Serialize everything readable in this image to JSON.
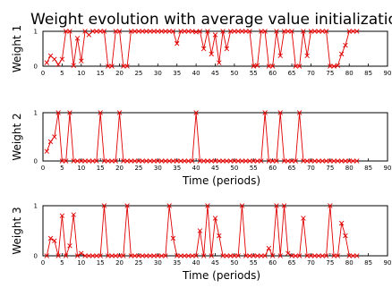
{
  "title": "Weight evolution with average value initialization",
  "chart_data": [
    {
      "type": "line",
      "ylabel": "Weight 1",
      "xlabel": "",
      "xlim": [
        0,
        90
      ],
      "ylim": [
        0,
        1
      ],
      "x_ticks": [
        "0",
        "5",
        "10",
        "15",
        "20",
        "25",
        "30",
        "35",
        "40",
        "45",
        "50",
        "55",
        "60",
        "65",
        "70",
        "75",
        "80",
        "85",
        "90"
      ],
      "y_ticks": [
        "0",
        "1"
      ],
      "color": "#e00000",
      "series": [
        {
          "x": [
            1,
            2,
            3,
            4,
            5,
            6,
            7,
            8,
            9,
            10,
            11,
            12,
            13,
            14,
            15,
            16,
            17,
            18,
            19,
            20,
            21,
            22,
            23,
            24,
            25,
            26,
            27,
            28,
            29,
            30,
            31,
            32,
            33,
            34,
            35,
            36,
            37,
            38,
            39,
            40,
            41,
            42,
            43,
            44,
            45,
            46,
            47,
            48,
            49,
            50,
            51,
            52,
            53,
            54,
            55,
            56,
            57,
            58,
            59,
            60,
            61,
            62,
            63,
            64,
            65,
            66,
            67,
            68,
            69,
            70,
            71,
            72,
            73,
            74,
            75,
            76,
            77,
            78,
            79,
            80,
            81,
            82
          ],
          "values": [
            0.1,
            0.3,
            0.2,
            0.05,
            0.2,
            1,
            1,
            0.02,
            0.8,
            0.15,
            1,
            0.9,
            1,
            1,
            1,
            1,
            0,
            0,
            1,
            1,
            0,
            0,
            1,
            1,
            1,
            1,
            1,
            1,
            1,
            1,
            1,
            1,
            1,
            1,
            0.65,
            1,
            1,
            1,
            1,
            0.98,
            1,
            0.5,
            1,
            0.35,
            0.9,
            0.1,
            1,
            0.5,
            1,
            1,
            1,
            1,
            1,
            1,
            0,
            0.02,
            1,
            1,
            0,
            0,
            1,
            0.3,
            1,
            1,
            1,
            0,
            0,
            1,
            0.3,
            1,
            1,
            1,
            1,
            1,
            0,
            0,
            0.02,
            0.35,
            0.6,
            1,
            1,
            1
          ]
        }
      ]
    },
    {
      "type": "line",
      "ylabel": "Weight 2",
      "xlabel": "Time (periods)",
      "xlim": [
        0,
        90
      ],
      "ylim": [
        0,
        1
      ],
      "x_ticks": [
        "0",
        "5",
        "10",
        "15",
        "20",
        "25",
        "30",
        "35",
        "40",
        "45",
        "50",
        "55",
        "60",
        "65",
        "70",
        "75",
        "80",
        "85",
        "90"
      ],
      "y_ticks": [
        "0",
        "1"
      ],
      "color": "#e00000",
      "series": [
        {
          "x": [
            1,
            2,
            3,
            4,
            5,
            6,
            7,
            8,
            9,
            10,
            11,
            12,
            13,
            14,
            15,
            16,
            17,
            18,
            19,
            20,
            21,
            22,
            23,
            24,
            25,
            26,
            27,
            28,
            29,
            30,
            31,
            32,
            33,
            34,
            35,
            36,
            37,
            38,
            39,
            40,
            41,
            42,
            43,
            44,
            45,
            46,
            47,
            48,
            49,
            50,
            51,
            52,
            53,
            54,
            55,
            56,
            57,
            58,
            59,
            60,
            61,
            62,
            63,
            64,
            65,
            66,
            67,
            68,
            69,
            70,
            71,
            72,
            73,
            74,
            75,
            76,
            77,
            78,
            79,
            80,
            81,
            82
          ],
          "values": [
            0.2,
            0.4,
            0.5,
            1,
            0,
            0,
            1,
            0,
            0,
            0,
            0,
            0,
            0,
            0,
            1,
            0,
            0,
            0,
            0,
            1,
            0,
            0,
            0,
            0,
            0,
            0,
            0,
            0,
            0,
            0,
            0,
            0,
            0,
            0,
            0,
            0,
            0,
            0,
            0,
            1,
            0,
            0,
            0,
            0,
            0,
            0,
            0,
            0,
            0,
            0,
            0,
            0,
            0,
            0,
            0,
            0,
            0,
            1,
            0,
            0,
            0,
            1,
            0,
            0,
            0,
            0,
            1,
            0,
            0,
            0,
            0,
            0,
            0,
            0,
            0,
            0,
            0,
            0,
            0,
            0,
            0,
            0
          ]
        }
      ]
    },
    {
      "type": "line",
      "ylabel": "Weight 3",
      "xlabel": "Time (periods)",
      "xlim": [
        0,
        90
      ],
      "ylim": [
        0,
        1
      ],
      "x_ticks": [
        "0",
        "5",
        "10",
        "15",
        "20",
        "25",
        "30",
        "35",
        "40",
        "45",
        "50",
        "55",
        "60",
        "65",
        "70",
        "75",
        "80",
        "85",
        "90"
      ],
      "y_ticks": [
        "0",
        "1"
      ],
      "color": "#e00000",
      "series": [
        {
          "x": [
            1,
            2,
            3,
            4,
            5,
            6,
            7,
            8,
            9,
            10,
            11,
            12,
            13,
            14,
            15,
            16,
            17,
            18,
            19,
            20,
            21,
            22,
            23,
            24,
            25,
            26,
            27,
            28,
            29,
            30,
            31,
            32,
            33,
            34,
            35,
            36,
            37,
            38,
            39,
            40,
            41,
            42,
            43,
            44,
            45,
            46,
            47,
            48,
            49,
            50,
            51,
            52,
            53,
            54,
            55,
            56,
            57,
            58,
            59,
            60,
            61,
            62,
            63,
            64,
            65,
            66,
            67,
            68,
            69,
            70,
            71,
            72,
            73,
            74,
            75,
            76,
            77,
            78,
            79,
            80,
            81,
            82
          ],
          "values": [
            0,
            0.35,
            0.3,
            0,
            0.8,
            0,
            0.2,
            0.82,
            0,
            0.05,
            0,
            0,
            0,
            0,
            0,
            1,
            0,
            0,
            0,
            0,
            0,
            1,
            0,
            0,
            0,
            0,
            0,
            0,
            0,
            0,
            0,
            0,
            1,
            0.35,
            0,
            0,
            0,
            0,
            0,
            0,
            0.5,
            0,
            1,
            0,
            0.75,
            0.4,
            0,
            0,
            0,
            0,
            0,
            1,
            0,
            0,
            0,
            0,
            0,
            0,
            0.15,
            0,
            1,
            0,
            1,
            0.05,
            0,
            0,
            0,
            0.75,
            0,
            0,
            0,
            0,
            0,
            0,
            1,
            0,
            0,
            0.65,
            0.4,
            0,
            0,
            0
          ]
        }
      ]
    }
  ]
}
